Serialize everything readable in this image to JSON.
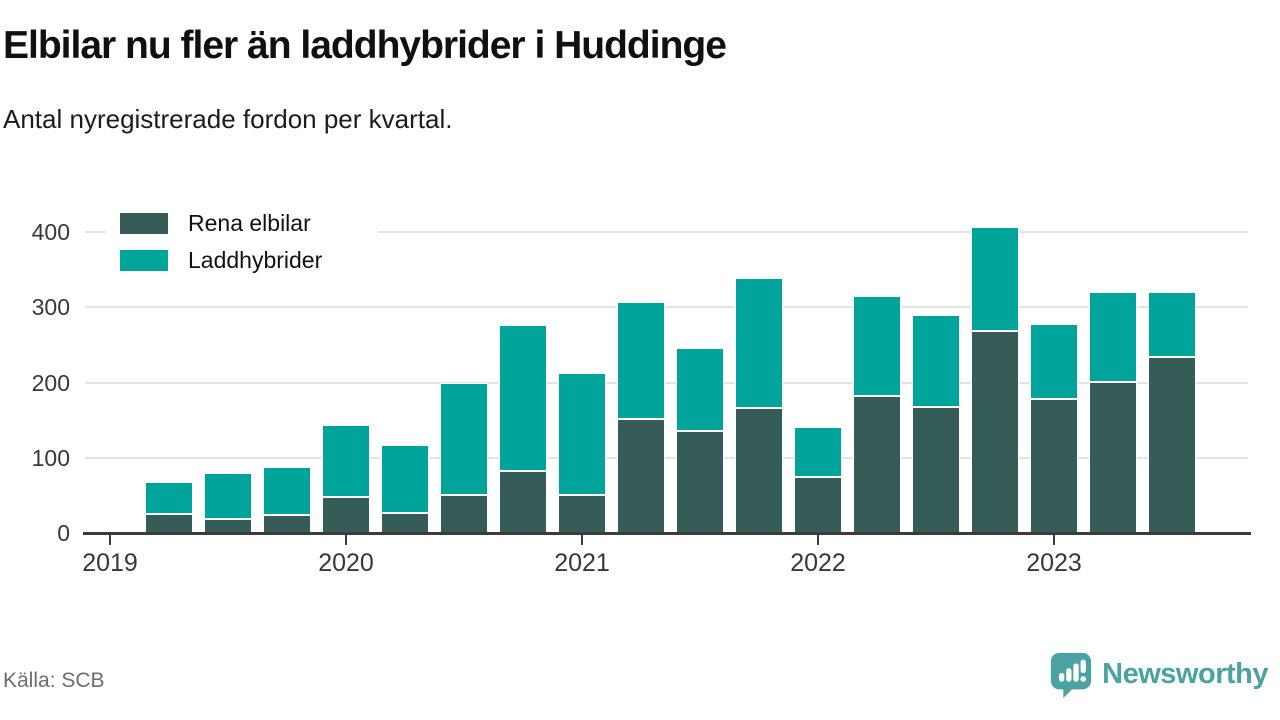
{
  "header": {
    "title": "Elbilar nu fler än laddhybrider i Huddinge",
    "subtitle": "Antal nyregistrerade fordon per kvartal."
  },
  "chart_data": {
    "type": "bar",
    "stacked": true,
    "title": "Elbilar nu fler än laddhybrider i Huddinge",
    "xlabel": "",
    "ylabel": "",
    "categories": [
      "2019 Q2",
      "2019 Q3",
      "2019 Q4",
      "2020 Q1",
      "2020 Q2",
      "2020 Q3",
      "2020 Q4",
      "2021 Q1",
      "2021 Q2",
      "2021 Q3",
      "2021 Q4",
      "2022 Q1",
      "2022 Q2",
      "2022 Q3",
      "2022 Q4",
      "2023 Q1",
      "2023 Q2",
      "2023 Q3"
    ],
    "series": [
      {
        "name": "Rena elbilar",
        "color": "#355c56",
        "values": [
          25,
          19,
          24,
          48,
          27,
          50,
          83,
          50,
          152,
          136,
          166,
          74,
          182,
          167,
          268,
          178,
          201,
          234
        ]
      },
      {
        "name": "Laddhybrider",
        "color": "#00a49b",
        "values": [
          43,
          61,
          64,
          95,
          90,
          149,
          194,
          162,
          155,
          110,
          173,
          67,
          133,
          123,
          138,
          100,
          119,
          86
        ]
      }
    ],
    "ylim": [
      0,
      430
    ],
    "y_ticks": [
      0,
      100,
      200,
      300,
      400
    ],
    "x_ticks": [
      {
        "label": "2019",
        "slot": 0
      },
      {
        "label": "2020",
        "slot": 4
      },
      {
        "label": "2021",
        "slot": 8
      },
      {
        "label": "2022",
        "slot": 12
      },
      {
        "label": "2023",
        "slot": 16
      }
    ],
    "first_bar_slot": 1,
    "total_slots": 19,
    "grid": true,
    "legend_position": "top-left"
  },
  "footer": {
    "source": "Källa: SCB",
    "brand": "Newsworthy"
  },
  "colors": {
    "axis": "#3b3b3b",
    "grid": "#e4e4e4",
    "dark_series": "#355c56",
    "teal_series": "#00a49b",
    "brand_teal": "#4ba2a2"
  }
}
